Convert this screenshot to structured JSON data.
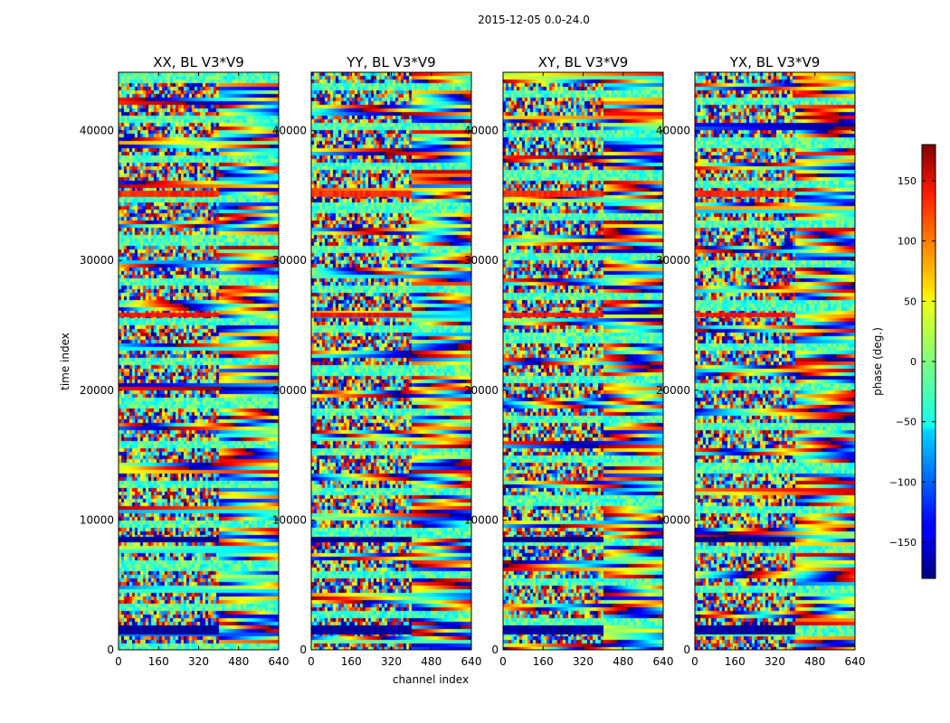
{
  "chart_data": {
    "type": "heatmap",
    "suptitle": "2015-12-05 0.0-24.0",
    "xlabel": "channel index",
    "ylabel": "time index",
    "xlim": [
      0,
      640
    ],
    "ylim": [
      0,
      44500
    ],
    "x_ticks": [
      0,
      160,
      320,
      480,
      640
    ],
    "x_tick_labels": [
      "0",
      "160",
      "320",
      "480",
      "640"
    ],
    "y_ticks": [
      0,
      10000,
      20000,
      30000,
      40000
    ],
    "y_tick_labels": [
      "0",
      "10000",
      "20000",
      "30000",
      "40000"
    ],
    "panels": [
      {
        "title": "XX, BL V3*V9",
        "polarization": "XX"
      },
      {
        "title": "YY, BL V3*V9",
        "polarization": "YY"
      },
      {
        "title": "XY, BL V3*V9",
        "polarization": "XY"
      },
      {
        "title": "YX, BL V3*V9",
        "polarization": "YX"
      }
    ],
    "colorbar": {
      "label": "phase (deg.)",
      "colormap": "jet",
      "vmin": -180,
      "vmax": 180,
      "ticks": [
        -150,
        -100,
        -50,
        0,
        50,
        100,
        150
      ],
      "tick_labels": [
        "−150",
        "−100",
        "−50",
        "0",
        "50",
        "100",
        "150"
      ]
    },
    "bands_time": [
      {
        "t0": 1200,
        "t1": 1900,
        "phase": -170
      },
      {
        "t0": 8300,
        "t1": 8700,
        "phase": -175
      },
      {
        "t0": 25600,
        "t1": 26000,
        "phase": 130
      },
      {
        "t0": 34900,
        "t1": 35400,
        "phase": 120
      }
    ]
  }
}
